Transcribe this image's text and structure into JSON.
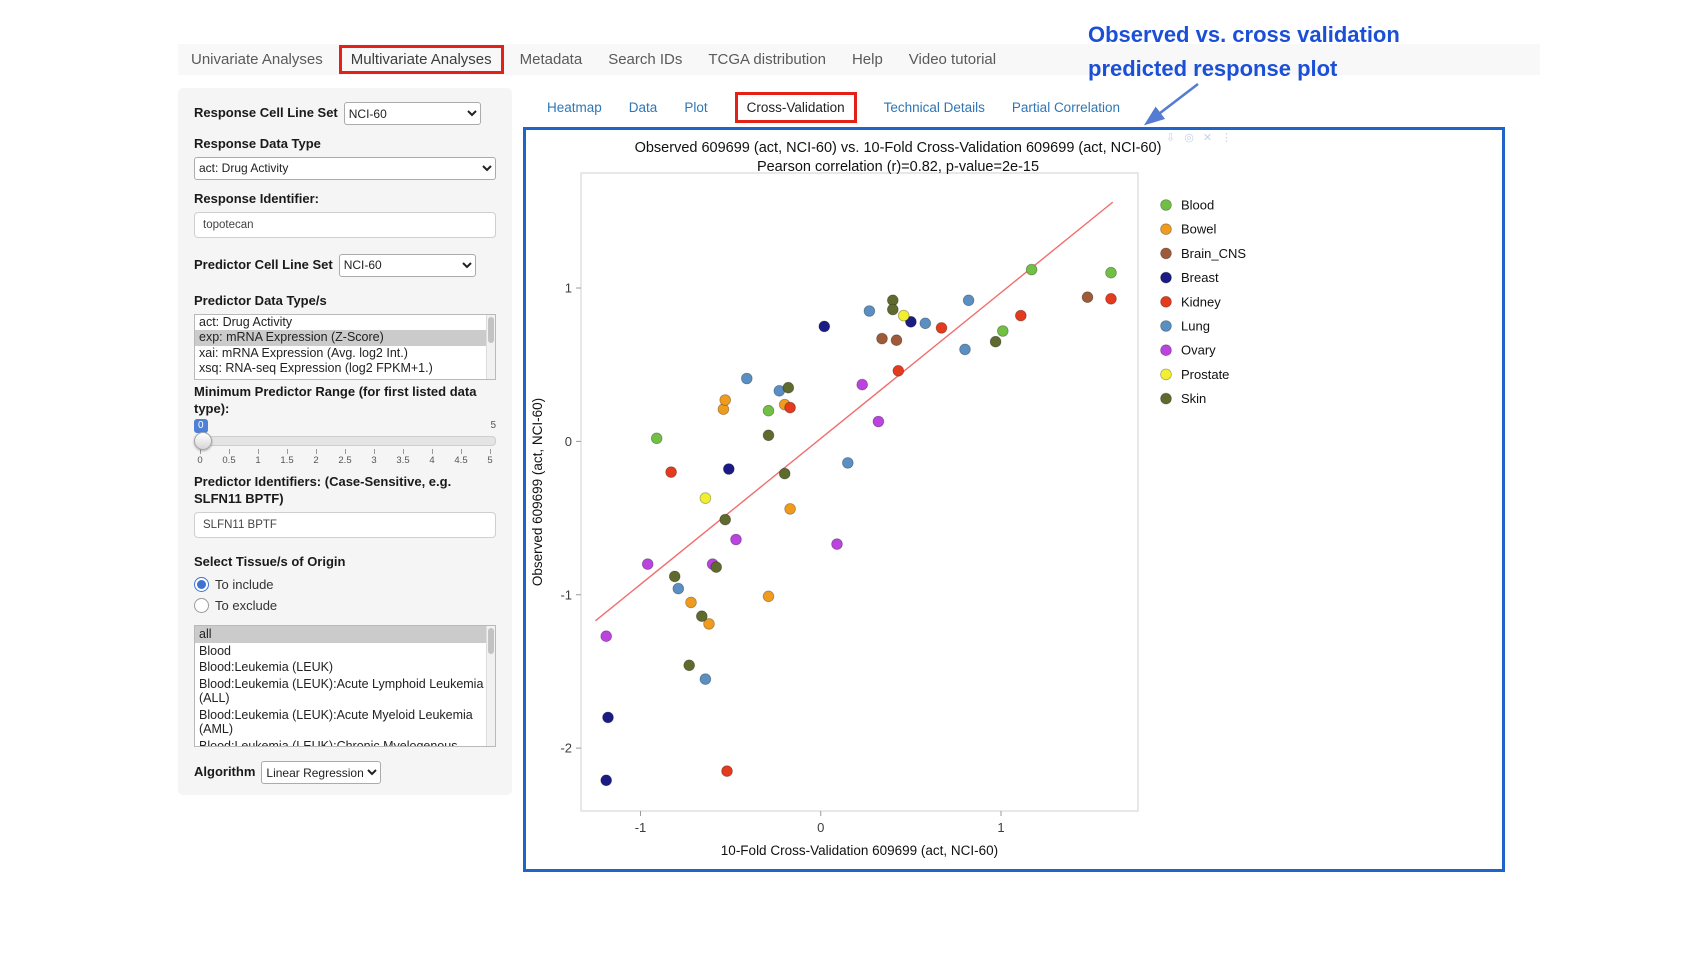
{
  "colors": {
    "highlight_red": "#e32119",
    "plot_border_blue": "#1f64c8",
    "link_blue": "#2f76b5",
    "annotation_blue": "#1b4fd6"
  },
  "annotation": {
    "line1": "Observed vs. cross validation",
    "line2": "predicted response plot"
  },
  "nav": {
    "tabs": [
      {
        "label": "Univariate Analyses",
        "highlighted": false
      },
      {
        "label": "Multivariate Analyses",
        "highlighted": true
      },
      {
        "label": "Metadata",
        "highlighted": false
      },
      {
        "label": "Search IDs",
        "highlighted": false
      },
      {
        "label": "TCGA distribution",
        "highlighted": false
      },
      {
        "label": "Help",
        "highlighted": false
      },
      {
        "label": "Video tutorial",
        "highlighted": false
      }
    ]
  },
  "sidebar": {
    "response_cell_line_set": {
      "label": "Response Cell Line Set",
      "value": "NCI-60"
    },
    "response_data_type": {
      "label": "Response Data Type",
      "value": "act: Drug Activity"
    },
    "response_identifier": {
      "label": "Response Identifier:",
      "value": "topotecan"
    },
    "predictor_cell_line_set": {
      "label": "Predictor Cell Line Set",
      "value": "NCI-60"
    },
    "predictor_data_types": {
      "label": "Predictor Data Type/s",
      "options": [
        "act: Drug Activity",
        "exp: mRNA Expression (Z-Score)",
        "xai: mRNA Expression (Avg. log2 Int.)",
        "xsq: RNA-seq Expression (log2 FPKM+1.)"
      ],
      "selected_index": 1
    },
    "min_predictor_range": {
      "label": "Minimum Predictor Range (for first listed data type):",
      "value": "0",
      "max_label": "5",
      "ticks": [
        "0",
        "0.5",
        "1",
        "1.5",
        "2",
        "2.5",
        "3",
        "3.5",
        "4",
        "4.5",
        "5"
      ]
    },
    "predictor_identifiers": {
      "label": "Predictor Identifiers: (Case-Sensitive, e.g. SLFN11 BPTF)",
      "value": "SLFN11 BPTF"
    },
    "tissue_origin": {
      "label": "Select Tissue/s of Origin",
      "radio_include": "To include",
      "radio_exclude": "To exclude",
      "options": [
        "all",
        "Blood",
        "Blood:Leukemia (LEUK)",
        "Blood:Leukemia (LEUK):Acute Lymphoid Leukemia (ALL)",
        "Blood:Leukemia (LEUK):Acute Myeloid Leukemia (AML)",
        "Blood:Leukemia (LEUK):Chronic Myelogenous Leukemia (CML)"
      ],
      "selected_index": 0
    },
    "algorithm": {
      "label": "Algorithm",
      "value": "Linear Regression"
    }
  },
  "subtabs": {
    "items": [
      {
        "label": "Heatmap",
        "active": false
      },
      {
        "label": "Data",
        "active": false
      },
      {
        "label": "Plot",
        "active": false
      },
      {
        "label": "Cross-Validation",
        "active": true
      },
      {
        "label": "Technical Details",
        "active": false
      },
      {
        "label": "Partial Correlation",
        "active": false
      }
    ]
  },
  "plot": {
    "modebar_icons": [
      {
        "name": "camera-icon",
        "glyph": "⇩"
      },
      {
        "name": "magnifier-icon",
        "glyph": "◎"
      },
      {
        "name": "close-icon",
        "glyph": "✕"
      },
      {
        "name": "menu-icon",
        "glyph": "⋮"
      }
    ]
  },
  "chart_data": {
    "type": "scatter",
    "title": "Observed 609699 (act, NCI-60) vs. 10-Fold Cross-Validation 609699 (act, NCI-60)",
    "subtitle": "Pearson correlation (r)=0.82, p-value=2e-15",
    "xlabel": "10-Fold Cross-Validation 609699 (act, NCI-60)",
    "ylabel": "Observed 609699 (act, NCI-60)",
    "xlim": [
      -1.33,
      1.76
    ],
    "ylim": [
      -2.41,
      1.75
    ],
    "xticks": [
      -1,
      0,
      1
    ],
    "yticks": [
      -2,
      -1,
      0,
      1
    ],
    "grid": false,
    "legend_position": "right",
    "regression_line": {
      "x1": -1.25,
      "y1": -1.17,
      "x2": 1.62,
      "y2": 1.56,
      "color": "#f26d6d"
    },
    "series": [
      {
        "name": "Blood",
        "color": "#71bf44",
        "points": [
          [
            -0.91,
            0.02
          ],
          [
            -0.29,
            0.2
          ],
          [
            1.01,
            0.72
          ],
          [
            1.17,
            1.12
          ],
          [
            1.61,
            1.1
          ]
        ]
      },
      {
        "name": "Bowel",
        "color": "#ef9b20",
        "points": [
          [
            -0.72,
            -1.05
          ],
          [
            -0.62,
            -1.19
          ],
          [
            -0.54,
            0.21
          ],
          [
            -0.53,
            0.27
          ],
          [
            -0.29,
            -1.01
          ],
          [
            -0.2,
            0.24
          ],
          [
            -0.17,
            -0.44
          ]
        ]
      },
      {
        "name": "Brain_CNS",
        "color": "#9e5b3a",
        "points": [
          [
            0.34,
            0.67
          ],
          [
            0.42,
            0.66
          ],
          [
            1.48,
            0.94
          ]
        ]
      },
      {
        "name": "Breast",
        "color": "#1b1b85",
        "points": [
          [
            -1.19,
            -2.21
          ],
          [
            -1.18,
            -1.8
          ],
          [
            -0.51,
            -0.18
          ],
          [
            0.02,
            0.75
          ],
          [
            0.5,
            0.78
          ]
        ]
      },
      {
        "name": "Kidney",
        "color": "#e43a1e",
        "points": [
          [
            -0.83,
            -0.2
          ],
          [
            -0.52,
            -2.15
          ],
          [
            -0.17,
            0.22
          ],
          [
            0.43,
            0.46
          ],
          [
            0.67,
            0.74
          ],
          [
            1.11,
            0.82
          ],
          [
            1.61,
            0.93
          ]
        ]
      },
      {
        "name": "Lung",
        "color": "#5a8fc2",
        "points": [
          [
            -0.79,
            -0.96
          ],
          [
            -0.64,
            -1.55
          ],
          [
            -0.41,
            0.41
          ],
          [
            -0.23,
            0.33
          ],
          [
            0.15,
            -0.14
          ],
          [
            0.27,
            0.85
          ],
          [
            0.58,
            0.77
          ],
          [
            0.8,
            0.6
          ],
          [
            0.82,
            0.92
          ]
        ]
      },
      {
        "name": "Ovary",
        "color": "#bb44e0",
        "points": [
          [
            -1.19,
            -1.27
          ],
          [
            -0.96,
            -0.8
          ],
          [
            -0.6,
            -0.8
          ],
          [
            -0.47,
            -0.64
          ],
          [
            0.09,
            -0.67
          ],
          [
            0.23,
            0.37
          ],
          [
            0.32,
            0.13
          ]
        ]
      },
      {
        "name": "Prostate",
        "color": "#f2ef30",
        "points": [
          [
            -0.64,
            -0.37
          ],
          [
            0.46,
            0.82
          ]
        ]
      },
      {
        "name": "Skin",
        "color": "#5f6b2e",
        "points": [
          [
            -0.81,
            -0.88
          ],
          [
            -0.73,
            -1.46
          ],
          [
            -0.66,
            -1.14
          ],
          [
            -0.58,
            -0.82
          ],
          [
            -0.53,
            -0.51
          ],
          [
            -0.29,
            0.04
          ],
          [
            -0.2,
            -0.21
          ],
          [
            -0.18,
            0.35
          ],
          [
            0.4,
            0.92
          ],
          [
            0.4,
            0.86
          ],
          [
            0.97,
            0.65
          ]
        ]
      }
    ]
  }
}
